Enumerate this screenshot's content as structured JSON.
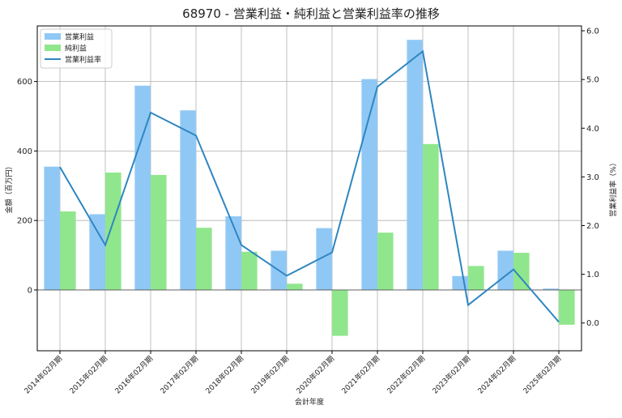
{
  "chart_data": {
    "type": "bar",
    "title": "68970 - 営業利益・純利益と営業利益率の推移",
    "xlabel": "会計年度",
    "ylabel": "金額（百万円）",
    "y2label": "営業利益率（%）",
    "ylim": [
      -175,
      760
    ],
    "y2lim": [
      -0.57,
      6.1
    ],
    "yticks": [
      0,
      200,
      400,
      600
    ],
    "y2ticks": [
      0.0,
      1.0,
      2.0,
      3.0,
      4.0,
      5.0,
      6.0
    ],
    "grid": true,
    "legend_position": "top-left",
    "categories": [
      "2014年02月期",
      "2015年02月期",
      "2016年02月期",
      "2017年02月期",
      "2018年02月期",
      "2019年02月期",
      "2020年02月期",
      "2021年02月期",
      "2022年02月期",
      "2023年02月期",
      "2024年02月期",
      "2025年02月期"
    ],
    "series": [
      {
        "name": "営業利益",
        "type": "bar",
        "axis": "left",
        "color": "#90c8f5",
        "values": [
          355,
          218,
          588,
          517,
          212,
          113,
          178,
          607,
          720,
          40,
          113,
          4
        ]
      },
      {
        "name": "純利益",
        "type": "bar",
        "axis": "left",
        "color": "#90e68c",
        "values": [
          226,
          338,
          331,
          179,
          110,
          18,
          -132,
          165,
          420,
          69,
          107,
          -100
        ]
      },
      {
        "name": "営業利益率",
        "type": "line",
        "axis": "right",
        "color": "#2e86c1",
        "values": [
          3.2,
          1.6,
          4.32,
          3.85,
          1.6,
          0.97,
          1.45,
          4.85,
          5.58,
          0.37,
          1.1,
          0.02
        ]
      }
    ]
  }
}
